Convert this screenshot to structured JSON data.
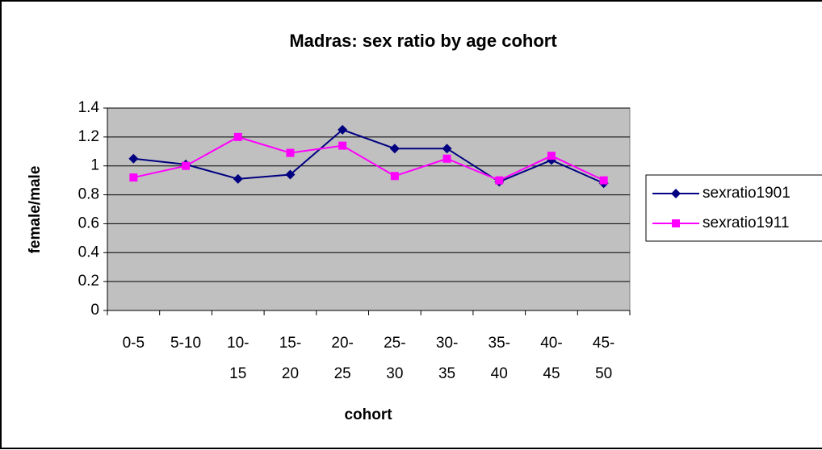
{
  "chart_data": {
    "type": "line",
    "title": "Madras: sex ratio by age cohort",
    "x_label": "cohort",
    "y_label": "female/male",
    "categories": [
      "0-5",
      "5-10",
      "10-15",
      "15-20",
      "20-25",
      "25-30",
      "30-35",
      "35-40",
      "40-45",
      "45-50"
    ],
    "series": [
      {
        "name": "sexratio1901",
        "color": "#000080",
        "marker": "diamond",
        "values": [
          1.05,
          1.01,
          0.91,
          0.94,
          1.25,
          1.12,
          1.12,
          0.89,
          1.04,
          0.88
        ]
      },
      {
        "name": "sexratio1911",
        "color": "#ff00ff",
        "marker": "square",
        "values": [
          0.92,
          1.0,
          1.2,
          1.09,
          1.14,
          0.93,
          1.05,
          0.9,
          1.07,
          0.9
        ]
      }
    ],
    "ylim": [
      0,
      1.4
    ],
    "yticks": [
      0,
      0.2,
      0.4,
      0.6,
      0.8,
      1,
      1.2,
      1.4
    ],
    "grid": true,
    "legend": "right"
  }
}
